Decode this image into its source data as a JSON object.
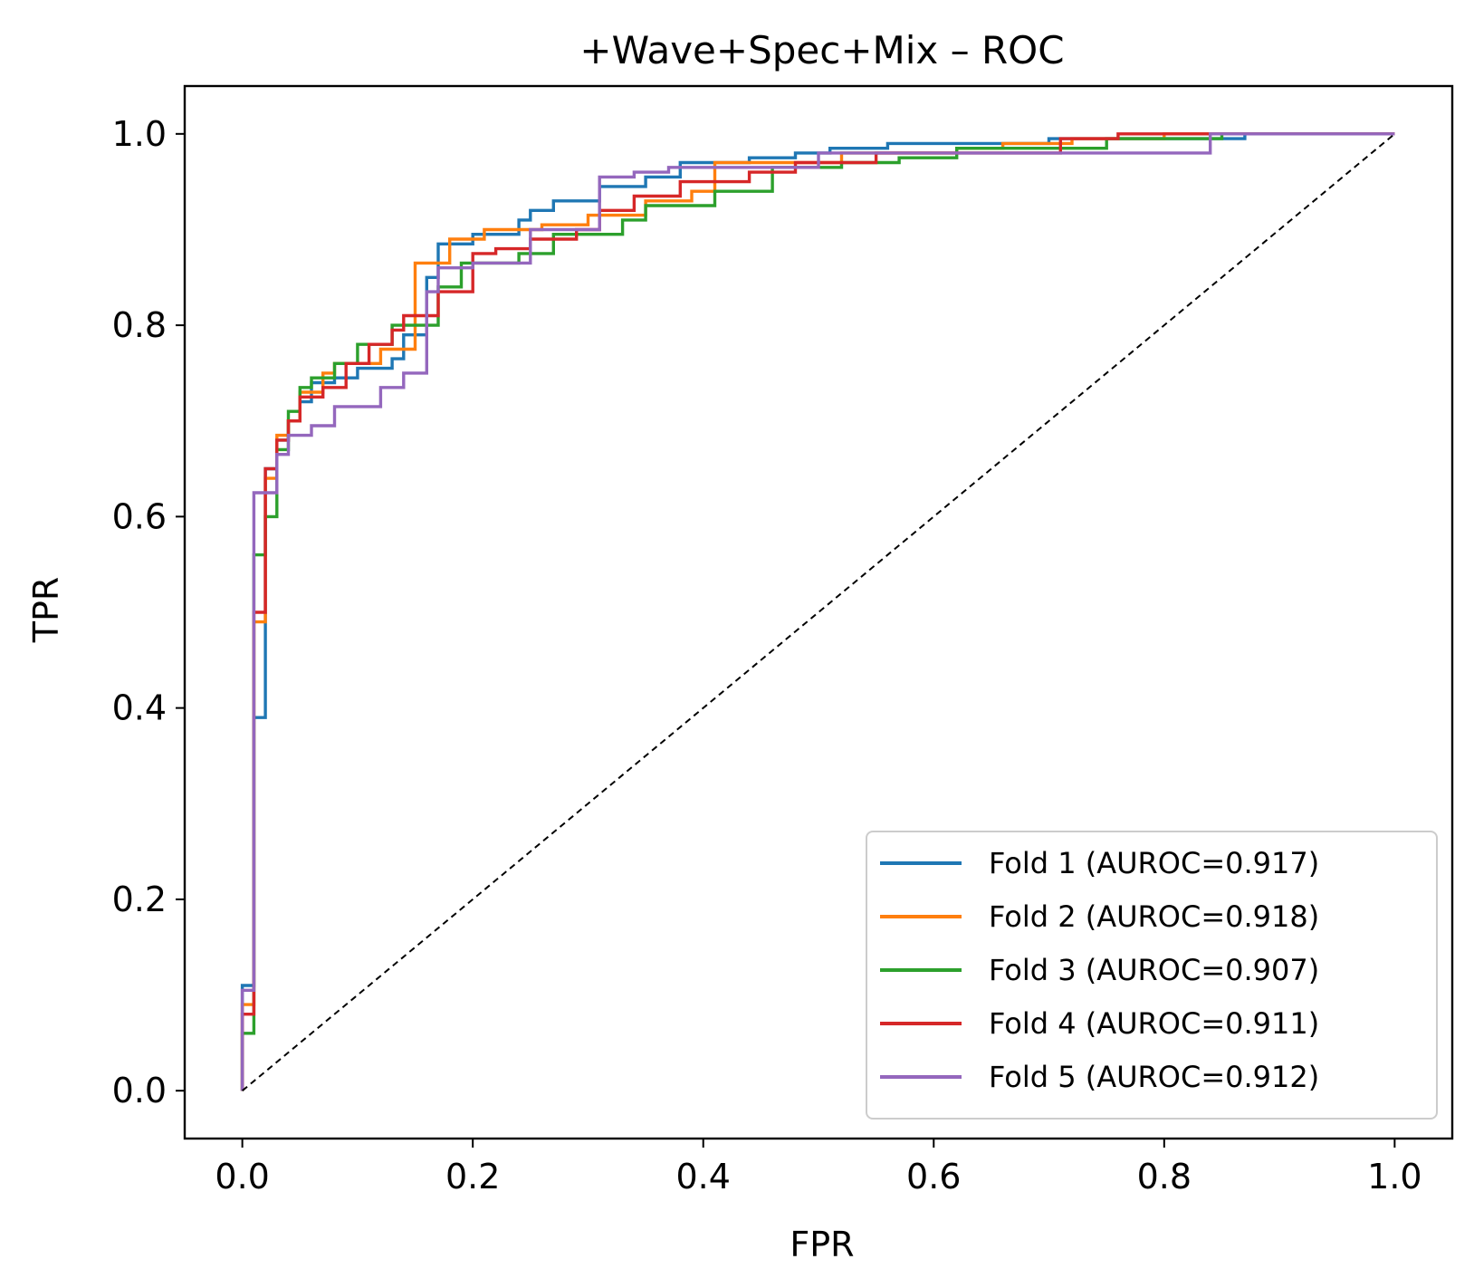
{
  "chart_data": {
    "type": "line",
    "title": "+Wave+Spec+Mix – ROC",
    "xlabel": "FPR",
    "ylabel": "TPR",
    "xlim": [
      -0.05,
      1.05
    ],
    "ylim": [
      -0.05,
      1.05
    ],
    "xticks": [
      "0.0",
      "0.2",
      "0.4",
      "0.6",
      "0.8",
      "1.0"
    ],
    "yticks": [
      "0.0",
      "0.2",
      "0.4",
      "0.6",
      "0.8",
      "1.0"
    ],
    "grid": false,
    "legend_position": "lower right",
    "diagonal": {
      "x": [
        0,
        1
      ],
      "y": [
        0,
        1
      ],
      "style": "dashed",
      "color": "#000000"
    },
    "series": [
      {
        "name": "Fold 1 (AUROC=0.917)",
        "color": "#1f77b4",
        "x": [
          0,
          0,
          0.01,
          0.01,
          0.02,
          0.02,
          0.03,
          0.03,
          0.04,
          0.04,
          0.05,
          0.05,
          0.06,
          0.06,
          0.08,
          0.08,
          0.1,
          0.1,
          0.13,
          0.13,
          0.14,
          0.14,
          0.16,
          0.16,
          0.17,
          0.17,
          0.2,
          0.2,
          0.24,
          0.24,
          0.25,
          0.25,
          0.27,
          0.27,
          0.31,
          0.31,
          0.35,
          0.35,
          0.38,
          0.38,
          0.44,
          0.44,
          0.48,
          0.48,
          0.51,
          0.51,
          0.56,
          0.56,
          0.7,
          0.7,
          0.87,
          0.87,
          1
        ],
        "y": [
          0,
          0.11,
          0.11,
          0.39,
          0.39,
          0.65,
          0.65,
          0.68,
          0.68,
          0.7,
          0.7,
          0.72,
          0.72,
          0.74,
          0.74,
          0.745,
          0.745,
          0.755,
          0.755,
          0.765,
          0.765,
          0.79,
          0.79,
          0.85,
          0.85,
          0.885,
          0.885,
          0.895,
          0.895,
          0.91,
          0.91,
          0.92,
          0.92,
          0.93,
          0.93,
          0.945,
          0.945,
          0.955,
          0.955,
          0.97,
          0.97,
          0.975,
          0.975,
          0.98,
          0.98,
          0.985,
          0.985,
          0.99,
          0.99,
          0.995,
          0.995,
          1,
          1
        ]
      },
      {
        "name": "Fold 2 (AUROC=0.918)",
        "color": "#ff7f0e",
        "x": [
          0,
          0,
          0.01,
          0.01,
          0.02,
          0.02,
          0.03,
          0.03,
          0.04,
          0.04,
          0.05,
          0.05,
          0.07,
          0.07,
          0.08,
          0.08,
          0.12,
          0.12,
          0.15,
          0.15,
          0.18,
          0.18,
          0.21,
          0.21,
          0.26,
          0.26,
          0.3,
          0.3,
          0.35,
          0.35,
          0.39,
          0.39,
          0.41,
          0.41,
          0.52,
          0.52,
          0.62,
          0.62,
          0.66,
          0.66,
          0.72,
          0.72,
          0.8,
          0.8,
          1
        ],
        "y": [
          0,
          0.09,
          0.09,
          0.49,
          0.49,
          0.64,
          0.64,
          0.685,
          0.685,
          0.7,
          0.7,
          0.73,
          0.73,
          0.75,
          0.75,
          0.76,
          0.76,
          0.775,
          0.775,
          0.865,
          0.865,
          0.89,
          0.89,
          0.9,
          0.9,
          0.905,
          0.905,
          0.915,
          0.915,
          0.93,
          0.93,
          0.94,
          0.94,
          0.97,
          0.97,
          0.98,
          0.98,
          0.985,
          0.985,
          0.99,
          0.99,
          0.995,
          0.995,
          1,
          1
        ]
      },
      {
        "name": "Fold 3 (AUROC=0.907)",
        "color": "#2ca02c",
        "x": [
          0,
          0,
          0.01,
          0.01,
          0.02,
          0.02,
          0.03,
          0.03,
          0.04,
          0.04,
          0.05,
          0.05,
          0.06,
          0.06,
          0.08,
          0.08,
          0.1,
          0.1,
          0.13,
          0.13,
          0.17,
          0.17,
          0.19,
          0.19,
          0.24,
          0.24,
          0.27,
          0.27,
          0.33,
          0.33,
          0.35,
          0.35,
          0.41,
          0.41,
          0.46,
          0.46,
          0.52,
          0.52,
          0.57,
          0.57,
          0.62,
          0.62,
          0.75,
          0.75,
          0.85,
          0.85,
          1
        ],
        "y": [
          0,
          0.06,
          0.06,
          0.56,
          0.56,
          0.6,
          0.6,
          0.67,
          0.67,
          0.71,
          0.71,
          0.735,
          0.735,
          0.745,
          0.745,
          0.76,
          0.76,
          0.78,
          0.78,
          0.8,
          0.8,
          0.84,
          0.84,
          0.865,
          0.865,
          0.875,
          0.875,
          0.895,
          0.895,
          0.91,
          0.91,
          0.925,
          0.925,
          0.94,
          0.94,
          0.965,
          0.965,
          0.97,
          0.97,
          0.975,
          0.975,
          0.985,
          0.985,
          0.995,
          0.995,
          1,
          1
        ]
      },
      {
        "name": "Fold 4 (AUROC=0.911)",
        "color": "#d62728",
        "x": [
          0,
          0,
          0.01,
          0.01,
          0.02,
          0.02,
          0.03,
          0.03,
          0.04,
          0.04,
          0.05,
          0.05,
          0.07,
          0.07,
          0.09,
          0.09,
          0.11,
          0.11,
          0.13,
          0.13,
          0.14,
          0.14,
          0.17,
          0.17,
          0.2,
          0.2,
          0.22,
          0.22,
          0.25,
          0.25,
          0.29,
          0.29,
          0.31,
          0.31,
          0.34,
          0.34,
          0.38,
          0.38,
          0.44,
          0.44,
          0.48,
          0.48,
          0.55,
          0.55,
          0.71,
          0.71,
          0.76,
          0.76,
          1
        ],
        "y": [
          0,
          0.08,
          0.08,
          0.5,
          0.5,
          0.65,
          0.65,
          0.68,
          0.68,
          0.7,
          0.7,
          0.725,
          0.725,
          0.735,
          0.735,
          0.76,
          0.76,
          0.78,
          0.78,
          0.795,
          0.795,
          0.81,
          0.81,
          0.835,
          0.835,
          0.875,
          0.875,
          0.88,
          0.88,
          0.89,
          0.89,
          0.9,
          0.9,
          0.92,
          0.92,
          0.935,
          0.935,
          0.95,
          0.95,
          0.96,
          0.96,
          0.97,
          0.97,
          0.98,
          0.98,
          0.995,
          0.995,
          1,
          1
        ]
      },
      {
        "name": "Fold 5 (AUROC=0.912)",
        "color": "#9467bd",
        "x": [
          0,
          0,
          0.01,
          0.01,
          0.03,
          0.03,
          0.04,
          0.04,
          0.06,
          0.06,
          0.08,
          0.08,
          0.12,
          0.12,
          0.14,
          0.14,
          0.16,
          0.16,
          0.17,
          0.17,
          0.2,
          0.2,
          0.25,
          0.25,
          0.31,
          0.31,
          0.34,
          0.34,
          0.37,
          0.37,
          0.5,
          0.5,
          0.84,
          0.84,
          1
        ],
        "y": [
          0,
          0.105,
          0.105,
          0.625,
          0.625,
          0.665,
          0.665,
          0.685,
          0.685,
          0.695,
          0.695,
          0.715,
          0.715,
          0.735,
          0.735,
          0.75,
          0.75,
          0.835,
          0.835,
          0.86,
          0.86,
          0.865,
          0.865,
          0.9,
          0.9,
          0.955,
          0.955,
          0.96,
          0.96,
          0.965,
          0.965,
          0.98,
          0.98,
          1,
          1
        ]
      }
    ]
  }
}
